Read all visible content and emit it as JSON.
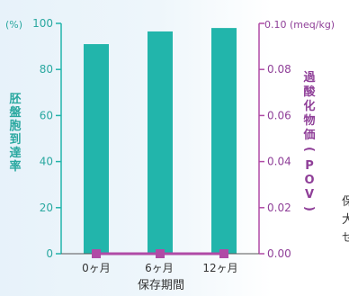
{
  "chart_data": {
    "type": "bar",
    "categories": [
      "0ヶ月",
      "6ヶ月",
      "12ヶ月"
    ],
    "xlabel": "保存期間",
    "left_axis": {
      "unit": "(%)",
      "label": [
        "胚",
        "盤",
        "胞",
        "到",
        "達",
        "率"
      ],
      "range": [
        0,
        100
      ],
      "ticks": [
        "0",
        "20",
        "40",
        "60",
        "80",
        "100"
      ],
      "color": "#22b5ab"
    },
    "right_axis": {
      "unit": "0.10 (meq/kg)",
      "label": [
        "過",
        "酸",
        "化",
        "物",
        "価",
        "(",
        "P",
        "O",
        "V",
        ")"
      ],
      "range": [
        0,
        0.1
      ],
      "ticks": [
        "0.00",
        "0.02",
        "0.04",
        "0.06",
        "0.08"
      ],
      "color": "#b04aa6"
    },
    "series": [
      {
        "values": [
          91,
          96.5,
          98
        ],
        "axis": "left",
        "type": "bar",
        "color": "#22b5ab"
      },
      {
        "values": [
          0,
          0,
          0
        ],
        "axis": "right",
        "type": "line",
        "color": "#b04aa6"
      }
    ],
    "side_text": [
      "保",
      "大",
      "せ"
    ]
  }
}
